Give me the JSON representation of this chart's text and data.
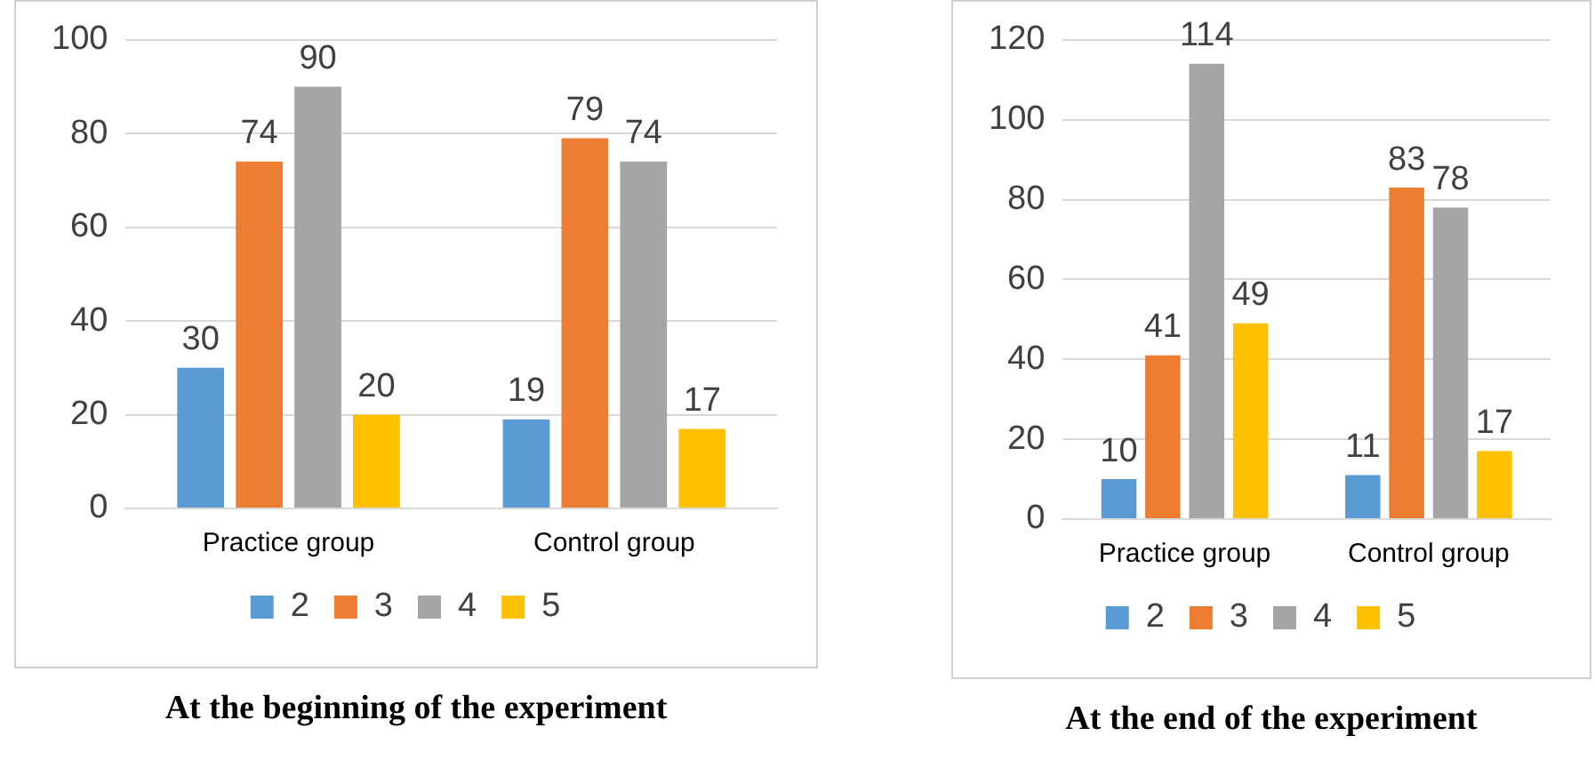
{
  "chart_data": [
    {
      "type": "bar",
      "title": "At the beginning of the experiment",
      "categories": [
        "Practice group",
        "Control group"
      ],
      "series": [
        {
          "name": "2",
          "color": "#5b9bd5",
          "values": [
            30,
            19
          ]
        },
        {
          "name": "3",
          "color": "#ed7d31",
          "values": [
            74,
            79
          ]
        },
        {
          "name": "4",
          "color": "#a5a5a5",
          "values": [
            90,
            74
          ]
        },
        {
          "name": "5",
          "color": "#ffc000",
          "values": [
            20,
            17
          ]
        }
      ],
      "ylim": [
        0,
        100
      ],
      "yticks": [
        0,
        20,
        40,
        60,
        80,
        100
      ],
      "grid": "y",
      "legend": "bottom",
      "data_labels": true
    },
    {
      "type": "bar",
      "title": "At the end of the experiment",
      "categories": [
        "Practice group",
        "Control group"
      ],
      "series": [
        {
          "name": "2",
          "color": "#5b9bd5",
          "values": [
            10,
            11
          ]
        },
        {
          "name": "3",
          "color": "#ed7d31",
          "values": [
            41,
            83
          ]
        },
        {
          "name": "4",
          "color": "#a5a5a5",
          "values": [
            114,
            78
          ]
        },
        {
          "name": "5",
          "color": "#ffc000",
          "values": [
            49,
            17
          ]
        }
      ],
      "ylim": [
        0,
        120
      ],
      "yticks": [
        0,
        20,
        40,
        60,
        80,
        100,
        120
      ],
      "grid": "y",
      "legend": "bottom",
      "data_labels": true
    }
  ]
}
